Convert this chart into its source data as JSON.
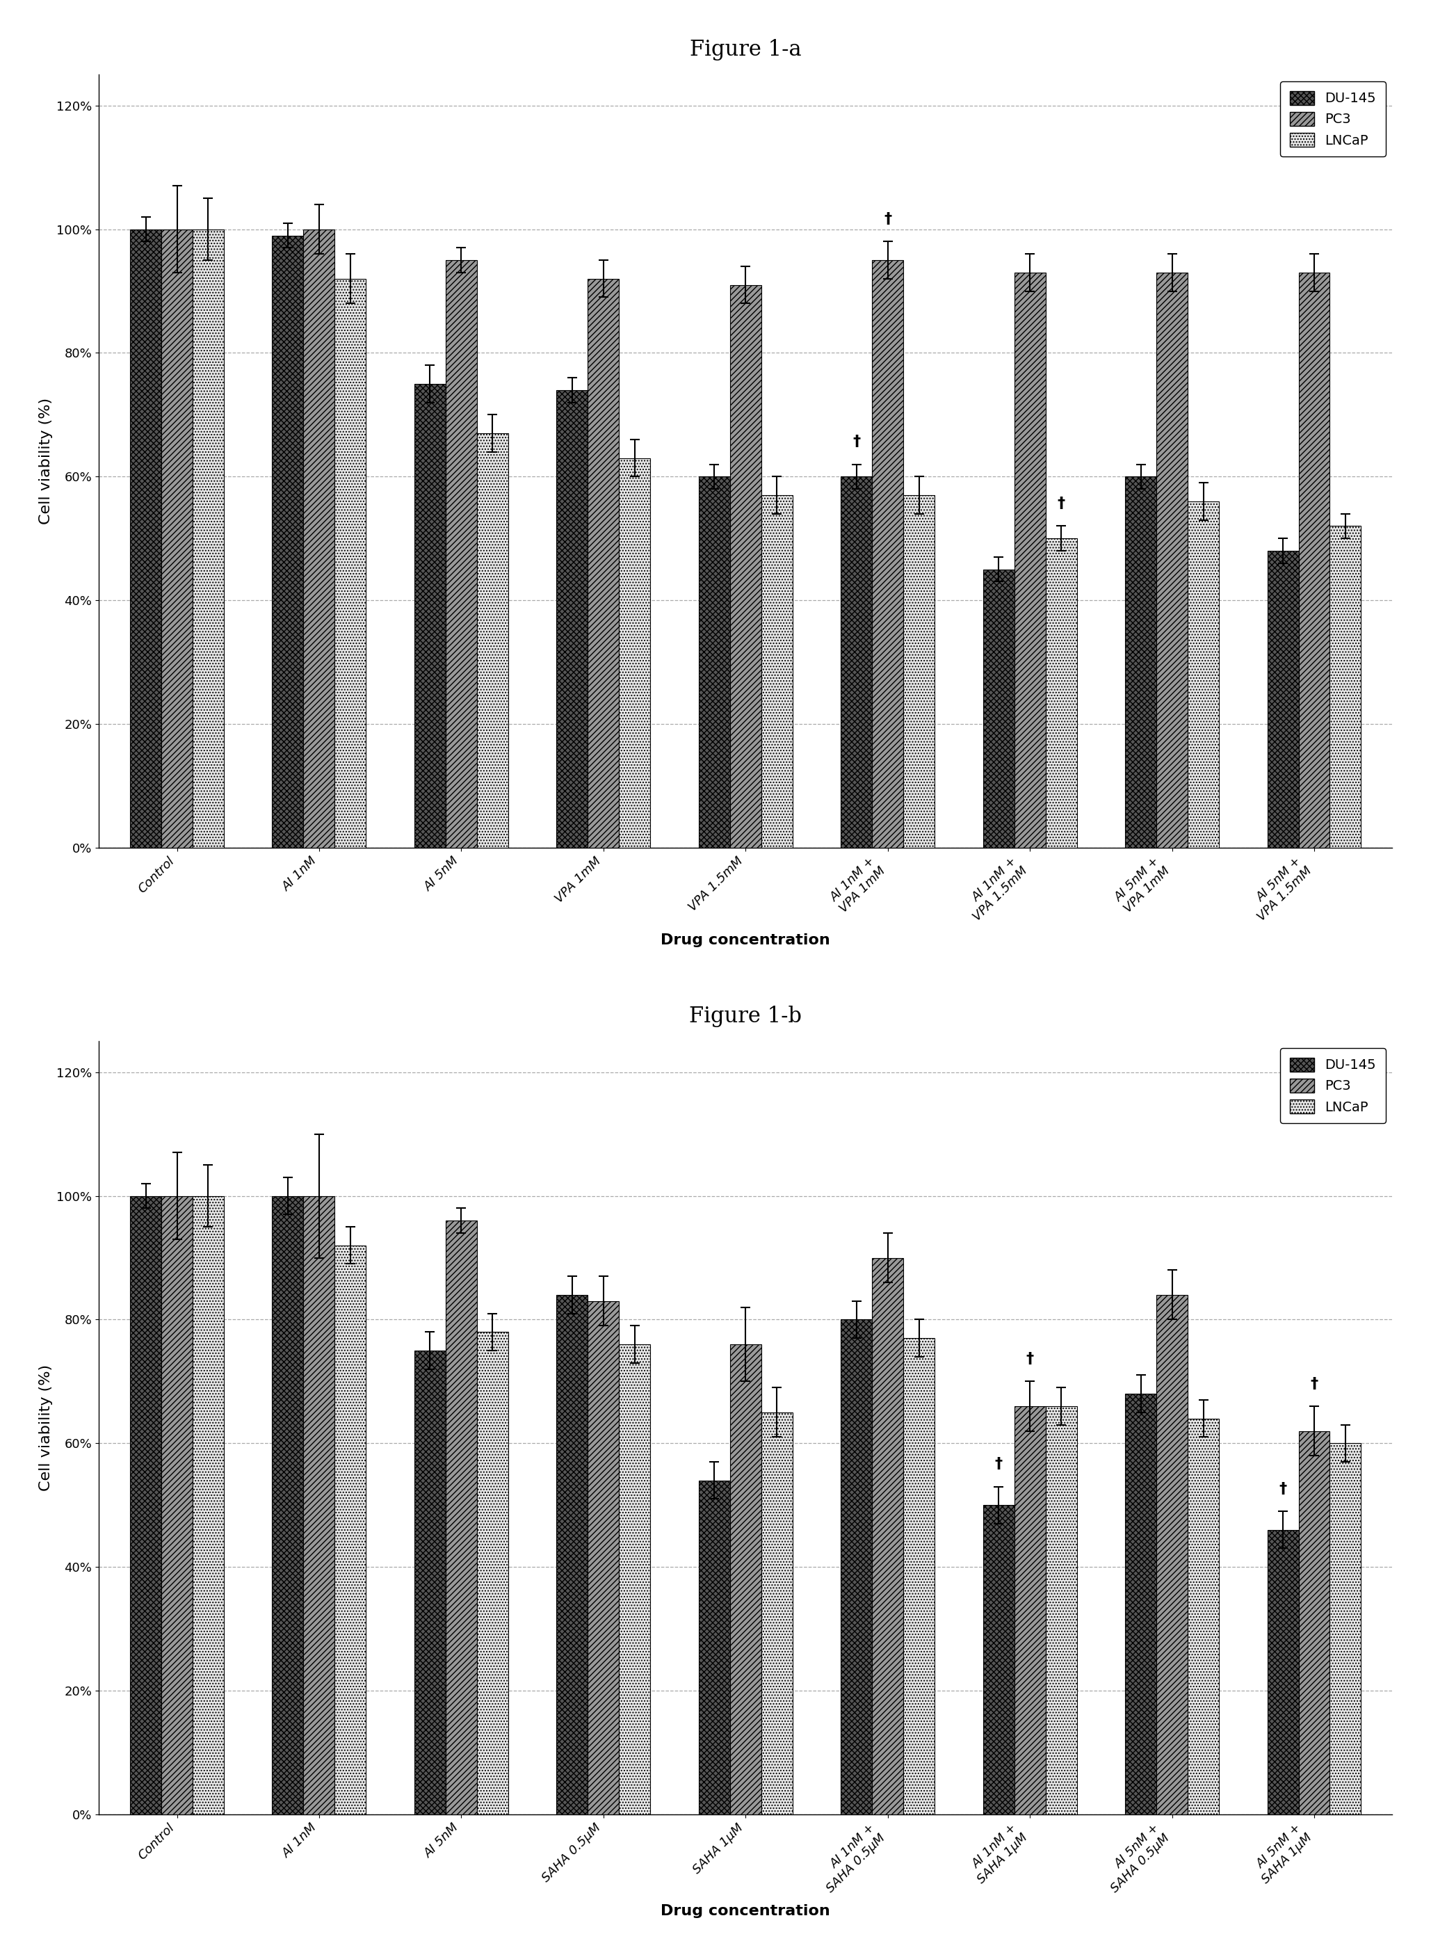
{
  "fig1a": {
    "title": "Figure 1-a",
    "categories": [
      "Control",
      "AI 1nM",
      "AI 5nM",
      "VPA 1mM",
      "VPA 1.5mM",
      "AI 1nM +\nVPA 1mM",
      "AI 1nM +\nVPA 1.5mM",
      "AI 5nM +\nVPA 1mM",
      "AI 5nM +\nVPA 1.5mM"
    ],
    "DU145": [
      100,
      99,
      75,
      74,
      60,
      60,
      45,
      60,
      48
    ],
    "PC3": [
      100,
      100,
      95,
      92,
      91,
      95,
      93,
      93,
      93
    ],
    "LNCaP": [
      100,
      92,
      67,
      63,
      57,
      57,
      50,
      56,
      52
    ],
    "DU145_err": [
      2,
      2,
      3,
      2,
      2,
      2,
      2,
      2,
      2
    ],
    "PC3_err": [
      7,
      4,
      2,
      3,
      3,
      3,
      3,
      3,
      3
    ],
    "LNCaP_err": [
      5,
      4,
      3,
      3,
      3,
      3,
      2,
      3,
      2
    ],
    "sig_du145_idx": [
      5
    ],
    "sig_pc3_idx": [
      5
    ],
    "sig_lncap_idx": [
      6
    ],
    "ylabel": "Cell viability (%)",
    "xlabel": "Drug concentration"
  },
  "fig1b": {
    "title": "Figure 1-b",
    "categories": [
      "Control",
      "AI 1nM",
      "AI 5nM",
      "SAHA 0.5μM",
      "SAHA 1μM",
      "AI 1nM +\nSAHA 0.5μM",
      "AI 1nM +\nSAHA 1μM",
      "AI 5nM +\nSAHA 0.5μM",
      "AI 5nM +\nSAHA 1μM"
    ],
    "DU145": [
      100,
      100,
      75,
      84,
      54,
      80,
      50,
      68,
      46
    ],
    "PC3": [
      100,
      100,
      96,
      83,
      76,
      90,
      66,
      84,
      62
    ],
    "LNCaP": [
      100,
      92,
      78,
      76,
      65,
      77,
      66,
      64,
      60
    ],
    "DU145_err": [
      2,
      3,
      3,
      3,
      3,
      3,
      3,
      3,
      3
    ],
    "PC3_err": [
      7,
      10,
      2,
      4,
      6,
      4,
      4,
      4,
      4
    ],
    "LNCaP_err": [
      5,
      3,
      3,
      3,
      4,
      3,
      3,
      3,
      3
    ],
    "sig_du145_idx": [
      6,
      8
    ],
    "sig_pc3_idx": [
      6,
      8
    ],
    "sig_lncap_idx": [],
    "ylabel": "Cell viability (%)",
    "xlabel": "Drug concentration"
  },
  "bar_width": 0.22,
  "du145_color": "#555555",
  "pc3_color": "#999999",
  "lncap_color": "#e8e8e8",
  "background_color": "#ffffff",
  "ylim": [
    0.0,
    1.25
  ],
  "yticks": [
    0.0,
    0.2,
    0.4,
    0.6,
    0.8,
    1.0,
    1.2
  ],
  "ytick_labels": [
    "0%",
    "20%",
    "40%",
    "60%",
    "80%",
    "100%",
    "120%"
  ],
  "title_fontsize": 22,
  "axis_label_fontsize": 16,
  "tick_fontsize": 13,
  "legend_fontsize": 14
}
